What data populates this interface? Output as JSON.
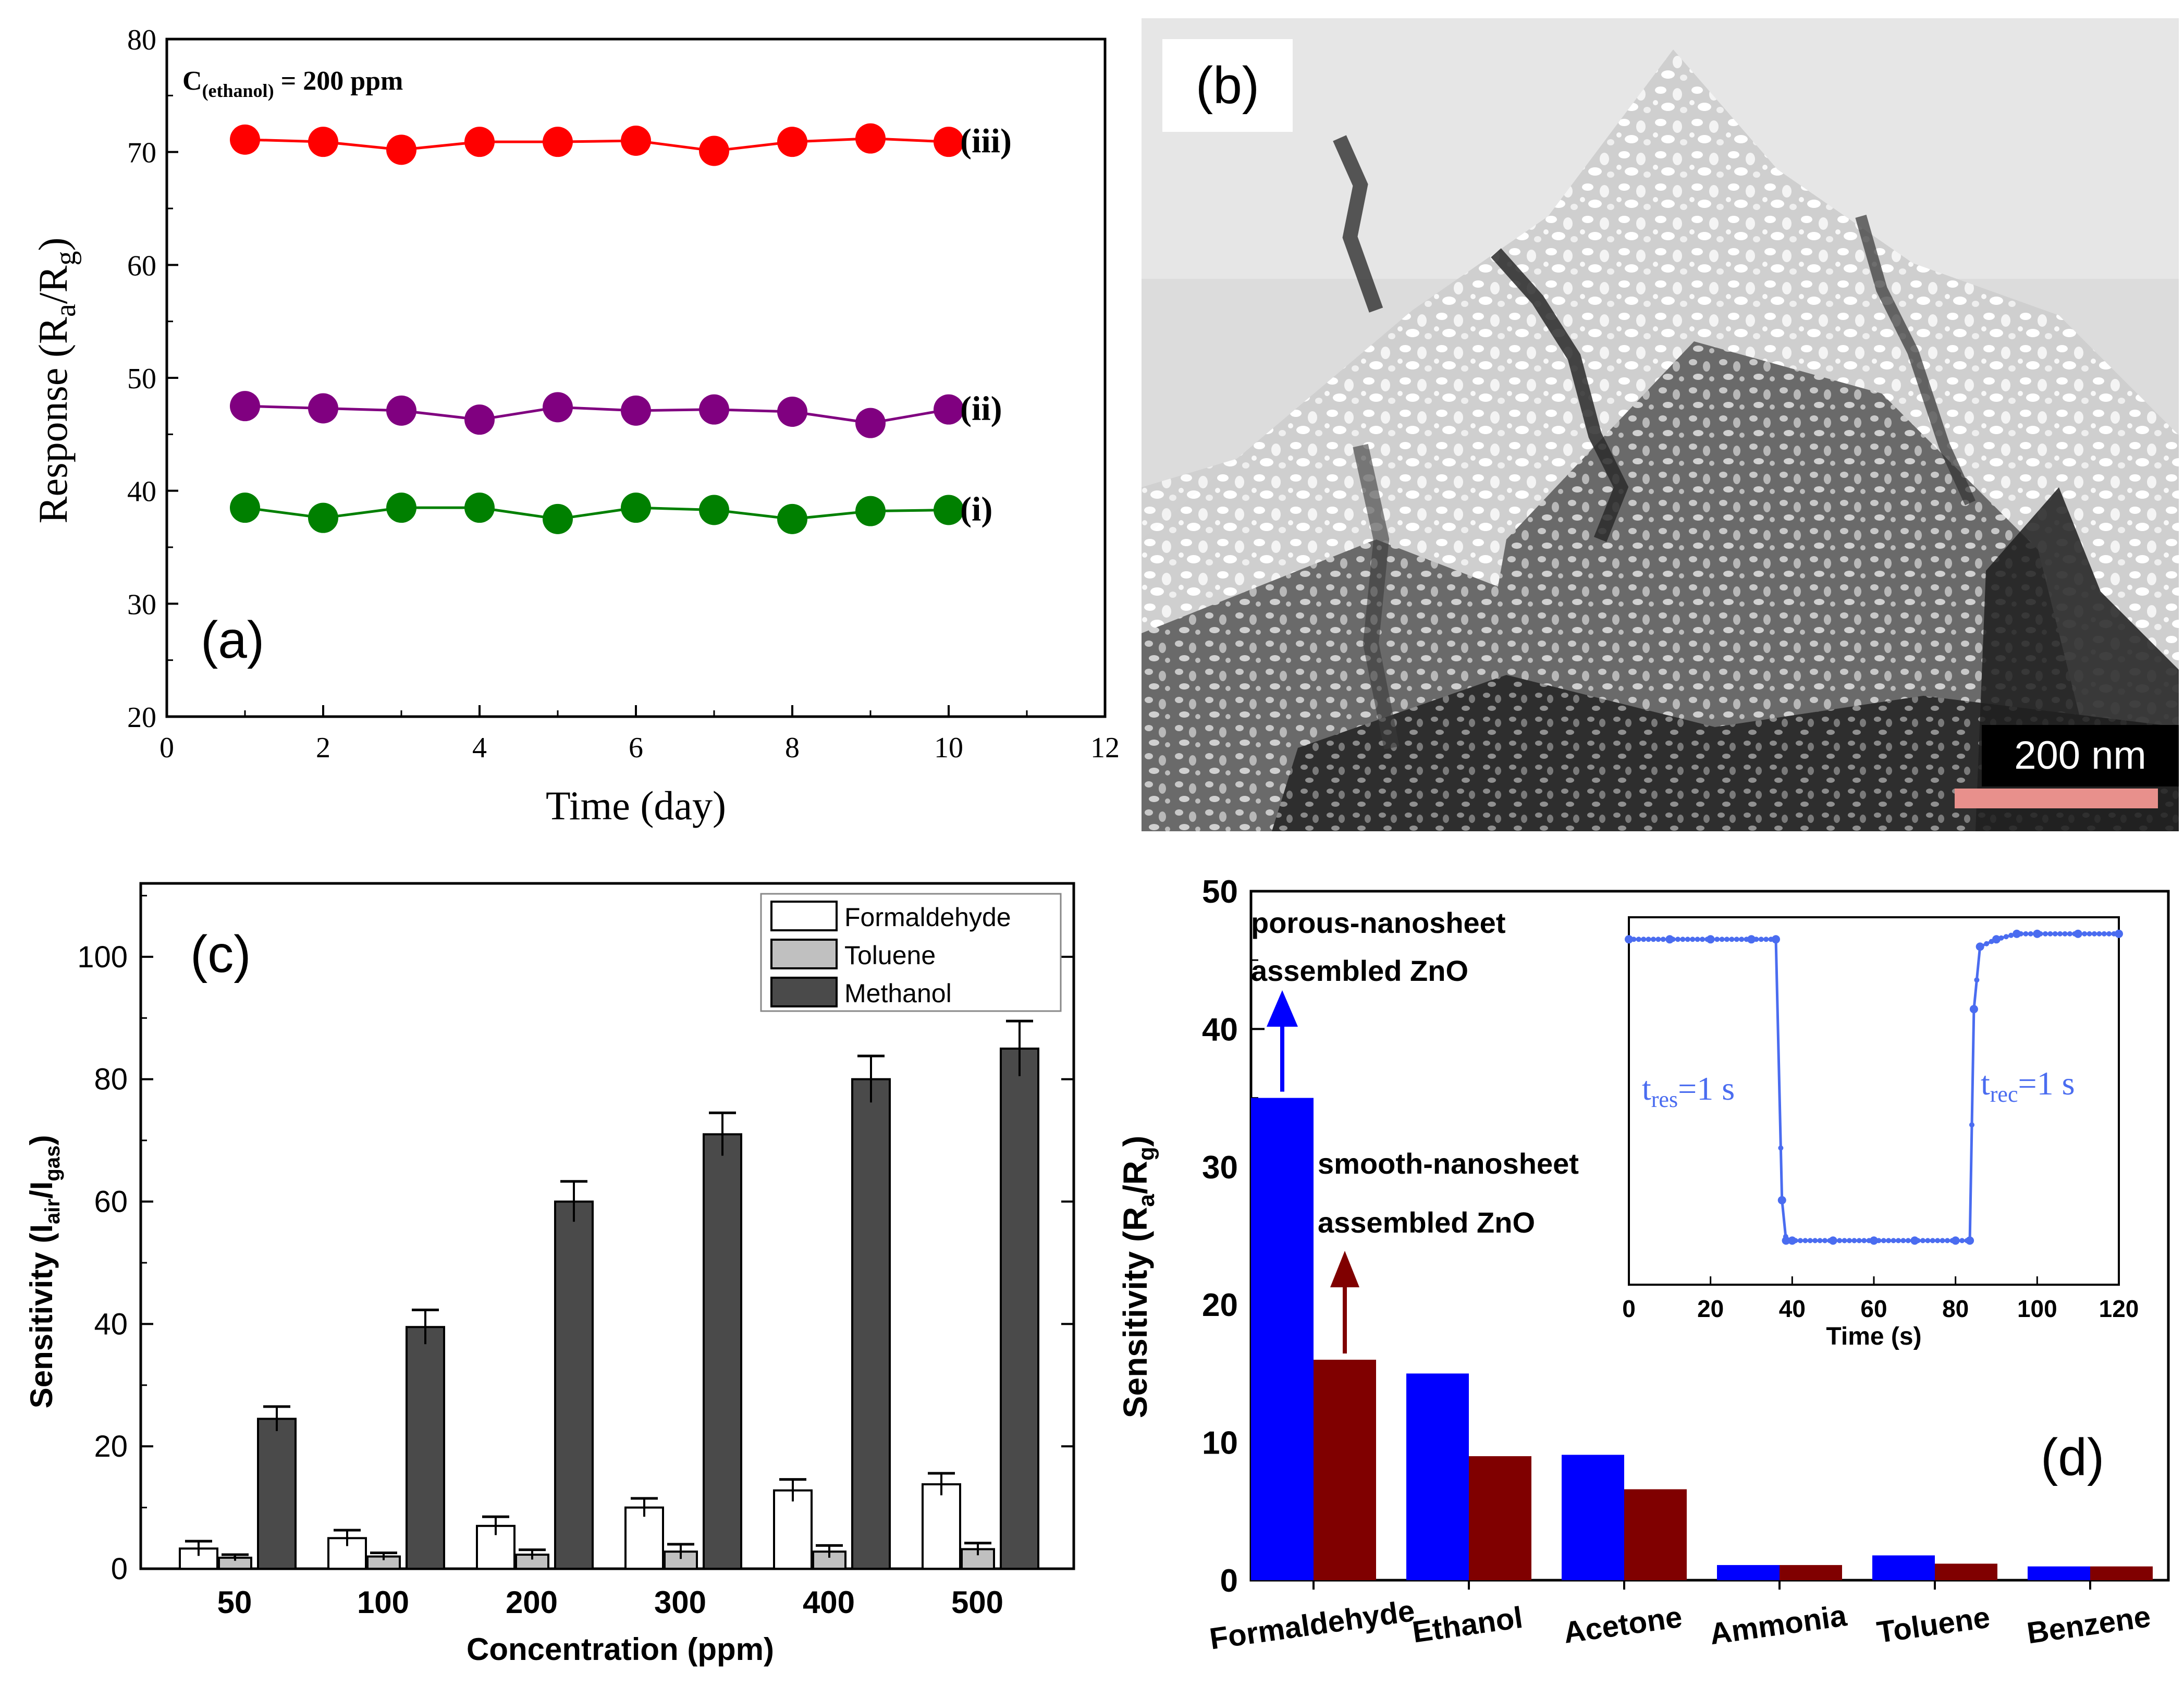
{
  "panels": {
    "a": {
      "label": "(a)"
    },
    "b": {
      "label": "(b)",
      "scale_bar": "200 nm",
      "scale_bar_color": "#e8908c"
    },
    "c": {
      "label": "(c)"
    },
    "d": {
      "label": "(d)"
    }
  },
  "chart_data": [
    {
      "id": "a",
      "type": "line",
      "title": "",
      "annotation_prefix": "C",
      "annotation_sub": "(ethanol)",
      "annotation_suffix": " = 200 ppm",
      "xlabel": "Time (day)",
      "ylabel_main": "Response (R",
      "ylabel_sub1": "a",
      "ylabel_mid": "/R",
      "ylabel_sub2": "g",
      "ylabel_end": ")",
      "xlim": [
        0,
        12
      ],
      "ylim": [
        20,
        80
      ],
      "xticks": [
        0,
        2,
        4,
        6,
        8,
        10,
        12
      ],
      "yticks": [
        20,
        30,
        40,
        50,
        60,
        70,
        80
      ],
      "x": [
        1,
        2,
        3,
        4,
        5,
        6,
        7,
        8,
        9,
        10
      ],
      "series": [
        {
          "name": "(iii)",
          "color": "#ff0000",
          "values": [
            71.1,
            70.9,
            70.2,
            70.9,
            70.9,
            71.0,
            70.1,
            70.9,
            71.2,
            70.9
          ]
        },
        {
          "name": "(ii)",
          "color": "#800080",
          "values": [
            47.5,
            47.3,
            47.1,
            46.3,
            47.4,
            47.1,
            47.2,
            47.0,
            46.0,
            47.2
          ]
        },
        {
          "name": "(i)",
          "color": "#008000",
          "values": [
            38.5,
            37.6,
            38.5,
            38.5,
            37.5,
            38.5,
            38.3,
            37.5,
            38.2,
            38.3
          ]
        }
      ]
    },
    {
      "id": "c",
      "type": "bar",
      "xlabel": "Concentration (ppm)",
      "ylabel_main": "Sensitivity (I",
      "ylabel_sub1": "air",
      "ylabel_mid": "/I",
      "ylabel_sub2": "gas",
      "ylabel_end": ")",
      "ylim": [
        0,
        112
      ],
      "yticks": [
        0,
        20,
        40,
        60,
        80,
        100
      ],
      "categories": [
        "50",
        "100",
        "200",
        "300",
        "400",
        "500"
      ],
      "legend_position": "top-right",
      "series": [
        {
          "name": "Formaldehyde",
          "color": "#ffffff",
          "values": [
            3.3,
            5.0,
            7.0,
            10.0,
            12.8,
            13.8
          ],
          "errors": [
            1.2,
            1.3,
            1.5,
            1.5,
            1.8,
            1.8
          ]
        },
        {
          "name": "Toluene",
          "color": "#c0c0c0",
          "values": [
            1.8,
            2.0,
            2.3,
            2.8,
            2.8,
            3.2
          ],
          "errors": [
            0.5,
            0.6,
            0.8,
            1.2,
            1.0,
            1.0
          ]
        },
        {
          "name": "Methanol",
          "color": "#4a4a4a",
          "values": [
            24.5,
            39.5,
            60.0,
            71.0,
            80.0,
            85.0
          ],
          "errors": [
            2.0,
            2.8,
            3.3,
            3.5,
            3.8,
            4.5
          ]
        }
      ]
    },
    {
      "id": "d",
      "type": "bar",
      "ylabel_main": "Sensitivity (R",
      "ylabel_sub1": "a",
      "ylabel_mid": "/R",
      "ylabel_sub2": "g",
      "ylabel_end": ")",
      "ylim": [
        0,
        50
      ],
      "yticks": [
        0,
        10,
        20,
        30,
        40,
        50
      ],
      "categories": [
        "Formaldehyde",
        "Ethanol",
        "Acetone",
        "Ammonia",
        "Toluene",
        "Benzene"
      ],
      "series": [
        {
          "name": "porous-nanosheet assembled ZnO",
          "color": "#0000ff",
          "values": [
            35,
            15,
            9.1,
            1.1,
            1.8,
            1.0
          ]
        },
        {
          "name": "smooth-nanosheet assembled ZnO",
          "color": "#800000",
          "values": [
            16,
            9,
            6.6,
            1.1,
            1.2,
            1.0
          ]
        }
      ],
      "annotations": {
        "porous_line1": "porous-nanosheet",
        "porous_line2": "assembled ZnO",
        "smooth_line1": "smooth-nanosheet",
        "smooth_line2": "assembled ZnO"
      },
      "inset": {
        "type": "line",
        "xlabel": "Time (s)",
        "xlim": [
          0,
          120
        ],
        "xticks": [
          0,
          20,
          40,
          60,
          80,
          100,
          120
        ],
        "ylim": [
          0,
          1
        ],
        "color": "#4a6cf0",
        "x": [
          0,
          10,
          20,
          30,
          36,
          37.5,
          38.5,
          40,
          50,
          60,
          70,
          80,
          83.5,
          84.5,
          86,
          90,
          95,
          100,
          110,
          120
        ],
        "y": [
          0.94,
          0.94,
          0.94,
          0.94,
          0.94,
          0.23,
          0.12,
          0.12,
          0.12,
          0.12,
          0.12,
          0.12,
          0.12,
          0.75,
          0.92,
          0.94,
          0.955,
          0.955,
          0.955,
          0.955
        ],
        "tres_main": "t",
        "tres_sub": "res",
        "tres_end": "=1 s",
        "trec_main": "t",
        "trec_sub": "rec",
        "trec_end": "=1 s"
      }
    }
  ]
}
